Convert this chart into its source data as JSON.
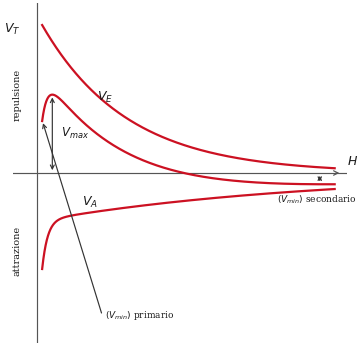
{
  "background_color": "#ffffff",
  "line_color": "#cc1122",
  "axis_color": "#555555",
  "text_color": "#1a1a1a",
  "annotation_color": "#333333",
  "figsize": [
    3.64,
    3.46
  ],
  "dpi": 100,
  "labels": {
    "VT": "$V_T$",
    "VE": "$V_E$",
    "VA": "$V_A$",
    "Vmax": "$V_{max}$",
    "Vmin_sec": "$(V_{min})$ secondario",
    "Vmin_pri": "$(V_{min})$ primario",
    "H": "$H$",
    "repulsione": "repulsione",
    "attrazione": "attrazione"
  }
}
